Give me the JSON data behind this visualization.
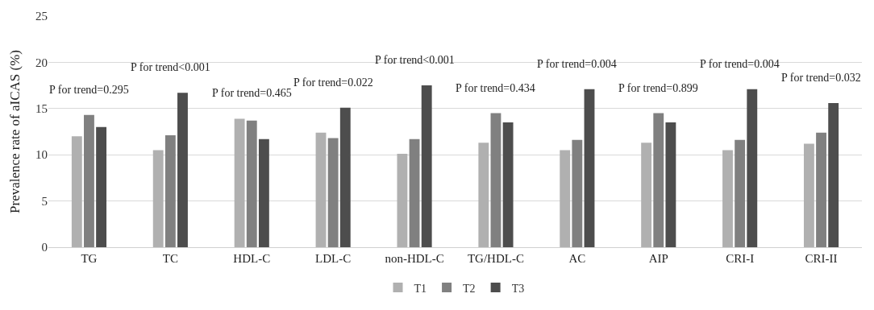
{
  "chart_data": {
    "type": "bar",
    "ylabel": "Prevalence rate of aICAS (%)",
    "categories": [
      "TG",
      "TC",
      "HDL-C",
      "LDL-C",
      "non-HDL-C",
      "TG/HDL-C",
      "AC",
      "AIP",
      "CRI-I",
      "CRI-II"
    ],
    "series": [
      {
        "name": "T1",
        "color": "#b0b0b0",
        "values": [
          12.0,
          10.5,
          13.9,
          12.4,
          10.1,
          11.3,
          10.5,
          11.3,
          10.5,
          11.2
        ]
      },
      {
        "name": "T2",
        "color": "#808080",
        "values": [
          14.3,
          12.1,
          13.7,
          11.8,
          11.7,
          14.5,
          11.6,
          14.5,
          11.6,
          12.4
        ]
      },
      {
        "name": "T3",
        "color": "#4d4d4d",
        "values": [
          13.0,
          16.7,
          11.7,
          15.1,
          17.5,
          13.5,
          17.1,
          13.5,
          17.1,
          15.6
        ]
      }
    ],
    "ylim": [
      0,
      25
    ],
    "yticks": [
      0,
      5,
      10,
      15,
      20,
      25
    ],
    "grid": "y",
    "legend": "bottom",
    "annotations": [
      "P for trend=0.295",
      "P for trend<0.001",
      "P for trend=0.465",
      "P for trend=0.022",
      "P for trend<0.001",
      "P for trend=0.434",
      "P for trend=0.004",
      "P for trend=0.899",
      "P for trend=0.004",
      "P for trend=0.032"
    ]
  }
}
